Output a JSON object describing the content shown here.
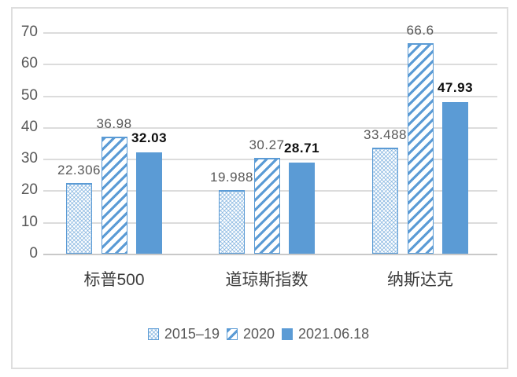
{
  "chart_data": {
    "type": "bar",
    "title": "",
    "xlabel": "",
    "ylabel": "",
    "categories": [
      "标普500",
      "道琼斯指数",
      "纳斯达克"
    ],
    "series": [
      {
        "name": "2015–19",
        "values": [
          22.306,
          19.988,
          33.488
        ],
        "fill": "crosshatch"
      },
      {
        "name": "2020",
        "values": [
          36.98,
          30.27,
          66.6
        ],
        "fill": "diagonal"
      },
      {
        "name": "2021.06.18",
        "values": [
          32.03,
          28.71,
          47.93
        ],
        "fill": "solid"
      }
    ],
    "yticks": [
      0,
      10,
      20,
      30,
      40,
      50,
      60,
      70
    ],
    "ylim": [
      0,
      70
    ],
    "grid": true,
    "legend_position": "bottom"
  },
  "colors": {
    "bar_accent": "#5B9BD5",
    "gridline": "#DCDCDC",
    "axis_baseline": "#C9C9C9",
    "axis_text": "#595959",
    "value_label": "#595959",
    "value_label_emphasis": "#0D0D0D",
    "category_text": "#3D3D3D",
    "frame_border": "#DEDEDE",
    "background": "#FFFFFF"
  },
  "layout": {
    "emphasized_series_index": 2
  }
}
